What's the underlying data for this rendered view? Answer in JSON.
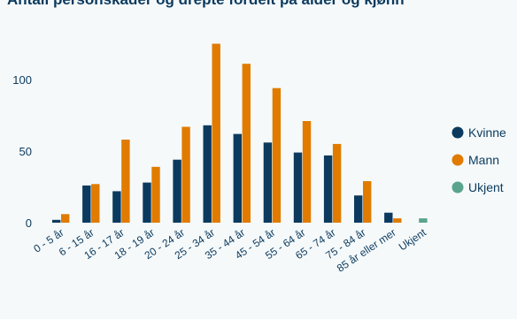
{
  "chart_data": {
    "type": "bar",
    "title": "Antall personskader og drepte fordelt på alder og kjønn",
    "xlabel": "",
    "ylabel": "",
    "ylim": [
      0,
      140
    ],
    "yticks": [
      "0",
      "50",
      "100"
    ],
    "grid": false,
    "legend_position": "right",
    "categories": [
      "0 - 5 år",
      "6 - 15 år",
      "16 - 17 år",
      "18 - 19 år",
      "20 - 24 år",
      "25 - 34 år",
      "35 - 44 år",
      "45 - 54 år",
      "55 - 64 år",
      "65 - 74 år",
      "75 - 84 år",
      "85 år eller mer",
      "Ukjent"
    ],
    "series": [
      {
        "name": "Kvinne",
        "color": "#0b3a5e",
        "values": [
          2,
          26,
          22,
          28,
          44,
          68,
          62,
          56,
          49,
          47,
          19,
          7,
          0
        ]
      },
      {
        "name": "Mann",
        "color": "#e07b00",
        "values": [
          6,
          27,
          58,
          39,
          67,
          125,
          111,
          94,
          71,
          55,
          29,
          3,
          0
        ]
      },
      {
        "name": "Ukjent",
        "color": "#5aa48c",
        "values": [
          0,
          0,
          0,
          0,
          0,
          0,
          0,
          0,
          0,
          0,
          0,
          0,
          3
        ]
      }
    ]
  }
}
